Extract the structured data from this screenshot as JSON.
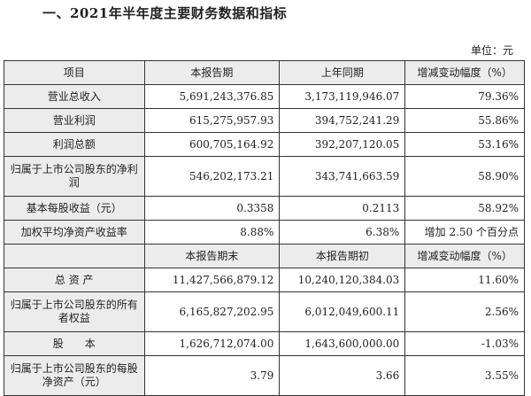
{
  "title": "一、2021年半年度主要财务数据和指标",
  "unit": "单位：元",
  "header1": [
    "项目",
    "本报告期",
    "上年同期",
    "增减变动幅度（%）"
  ],
  "rows1": [
    {
      "label": "营业总收入",
      "current": "5,691,243,376.85",
      "prior": "3,173,119,946.07",
      "change": "79.36%"
    },
    {
      "label": "营业利润",
      "current": "615,275,957.93",
      "prior": "394,752,241.29",
      "change": "55.86%"
    },
    {
      "label": "利润总额",
      "current": "600,705,164.92",
      "prior": "392,207,120.05",
      "change": "53.16%"
    },
    {
      "label": "归属于上市公司股东的净利润",
      "current": "546,202,173.21",
      "prior": "343,741,663.59",
      "change": "58.90%"
    },
    {
      "label": "基本每股收益（元）",
      "current": "0.3358",
      "prior": "0.2113",
      "change": "58.92%"
    },
    {
      "label": "加权平均净资产收益率",
      "current": "8.88%",
      "prior": "6.38%",
      "change": "增加 2.50 个百分点"
    }
  ],
  "header2": [
    "",
    "本报告期末",
    "本报告期初",
    "增减变动幅度（%）"
  ],
  "rows2": [
    {
      "label": "总 资 产",
      "current": "11,427,566,879.12",
      "prior": "10,240,120,384.03",
      "change": "11.60%"
    },
    {
      "label": "归属于上市公司股东的所有者权益",
      "current": "6,165,827,202.95",
      "prior": "6,012,049,600.11",
      "change": "2.56%"
    },
    {
      "label": "股　　本",
      "current": "1,626,712,074.00",
      "prior": "1,643,600,000.00",
      "change": "-1.03%"
    },
    {
      "label": "归属于上市公司股东的每股净资产（元）",
      "current": "3.79",
      "prior": "3.66",
      "change": "3.55%"
    }
  ]
}
